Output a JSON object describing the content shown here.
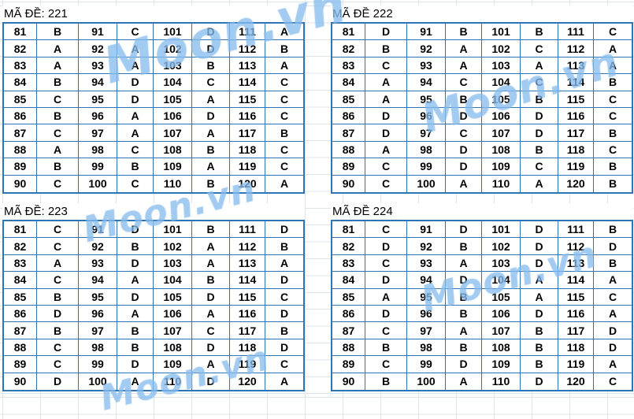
{
  "watermark": {
    "text": "Moon.vn",
    "color": "#7db4e9"
  },
  "colors": {
    "table_border": "#2e75b6",
    "background_gridline": "#dce4ee",
    "cell_text": "#000000"
  },
  "tables": [
    {
      "title": "MÃ ĐỀ: 221",
      "rows": [
        [
          "81",
          "B",
          "91",
          "C",
          "101",
          "D",
          "111",
          "A"
        ],
        [
          "82",
          "A",
          "92",
          "A",
          "102",
          "D",
          "112",
          "B"
        ],
        [
          "83",
          "A",
          "93",
          "A",
          "103",
          "B",
          "113",
          "A"
        ],
        [
          "84",
          "B",
          "94",
          "D",
          "104",
          "C",
          "114",
          "C"
        ],
        [
          "85",
          "C",
          "95",
          "D",
          "105",
          "A",
          "115",
          "C"
        ],
        [
          "86",
          "B",
          "96",
          "A",
          "106",
          "D",
          "116",
          "C"
        ],
        [
          "87",
          "C",
          "97",
          "A",
          "107",
          "A",
          "117",
          "B"
        ],
        [
          "88",
          "A",
          "98",
          "C",
          "108",
          "B",
          "118",
          "C"
        ],
        [
          "89",
          "B",
          "99",
          "B",
          "109",
          "A",
          "119",
          "C"
        ],
        [
          "90",
          "C",
          "100",
          "C",
          "110",
          "B",
          "120",
          "A"
        ]
      ]
    },
    {
      "title": "MÃ ĐỀ 222",
      "rows": [
        [
          "81",
          "D",
          "91",
          "B",
          "101",
          "B",
          "111",
          "C"
        ],
        [
          "82",
          "B",
          "92",
          "A",
          "102",
          "C",
          "112",
          "A"
        ],
        [
          "83",
          "C",
          "93",
          "A",
          "103",
          "A",
          "113",
          "A"
        ],
        [
          "84",
          "A",
          "94",
          "C",
          "104",
          "C",
          "114",
          "B"
        ],
        [
          "85",
          "A",
          "95",
          "B",
          "105",
          "B",
          "115",
          "C"
        ],
        [
          "86",
          "D",
          "96",
          "D",
          "106",
          "D",
          "116",
          "C"
        ],
        [
          "87",
          "D",
          "97",
          "C",
          "107",
          "D",
          "117",
          "B"
        ],
        [
          "88",
          "A",
          "98",
          "D",
          "108",
          "B",
          "118",
          "C"
        ],
        [
          "89",
          "C",
          "99",
          "D",
          "109",
          "C",
          "119",
          "B"
        ],
        [
          "90",
          "C",
          "100",
          "A",
          "110",
          "A",
          "120",
          "B"
        ]
      ]
    },
    {
      "title": "MÃ ĐỀ: 223",
      "rows": [
        [
          "81",
          "C",
          "91",
          "D",
          "101",
          "B",
          "111",
          "D"
        ],
        [
          "82",
          "C",
          "92",
          "B",
          "102",
          "A",
          "112",
          "B"
        ],
        [
          "83",
          "A",
          "93",
          "D",
          "103",
          "A",
          "113",
          "A"
        ],
        [
          "84",
          "C",
          "94",
          "A",
          "104",
          "B",
          "114",
          "D"
        ],
        [
          "85",
          "B",
          "95",
          "D",
          "105",
          "D",
          "115",
          "C"
        ],
        [
          "86",
          "D",
          "96",
          "A",
          "106",
          "A",
          "116",
          "D"
        ],
        [
          "87",
          "B",
          "97",
          "B",
          "107",
          "C",
          "117",
          "B"
        ],
        [
          "88",
          "C",
          "98",
          "B",
          "108",
          "D",
          "118",
          "D"
        ],
        [
          "89",
          "C",
          "99",
          "D",
          "109",
          "A",
          "119",
          "C"
        ],
        [
          "90",
          "D",
          "100",
          "A",
          "110",
          "D",
          "120",
          "A"
        ]
      ]
    },
    {
      "title": "MÃ ĐỀ 224",
      "rows": [
        [
          "81",
          "C",
          "91",
          "D",
          "101",
          "D",
          "111",
          "B"
        ],
        [
          "82",
          "D",
          "92",
          "B",
          "102",
          "D",
          "112",
          "D"
        ],
        [
          "83",
          "C",
          "93",
          "A",
          "103",
          "D",
          "113",
          "B"
        ],
        [
          "84",
          "D",
          "94",
          "D",
          "104",
          "A",
          "114",
          "A"
        ],
        [
          "85",
          "A",
          "95",
          "B",
          "105",
          "A",
          "115",
          "C"
        ],
        [
          "86",
          "D",
          "96",
          "B",
          "106",
          "D",
          "116",
          "A"
        ],
        [
          "87",
          "C",
          "97",
          "A",
          "107",
          "B",
          "117",
          "D"
        ],
        [
          "88",
          "B",
          "98",
          "B",
          "108",
          "B",
          "118",
          "D"
        ],
        [
          "89",
          "C",
          "99",
          "D",
          "109",
          "B",
          "119",
          "A"
        ],
        [
          "90",
          "B",
          "100",
          "A",
          "110",
          "D",
          "120",
          "C"
        ]
      ]
    }
  ]
}
